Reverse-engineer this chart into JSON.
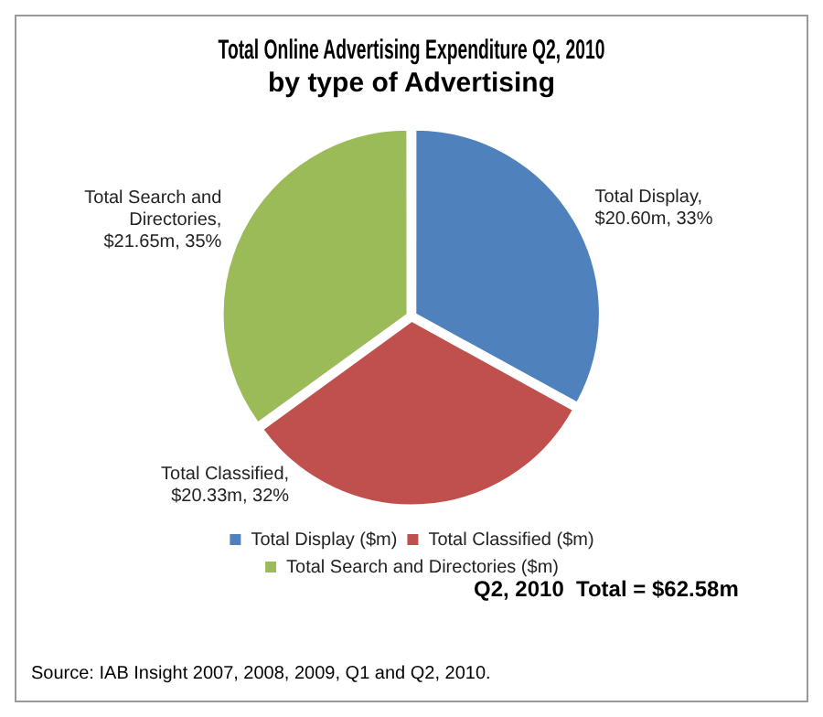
{
  "chart_data": {
    "type": "pie",
    "title": "Total Online Advertising Expenditure Q2, 2010\nby type of Advertising",
    "categories": [
      "Total Display ($m)",
      "Total Classified ($m)",
      "Total Search and Directories ($m)"
    ],
    "values": [
      33,
      32,
      35
    ],
    "colors": [
      "#4f81bd",
      "#c0504d",
      "#9bbb59"
    ],
    "value_labels": [
      "Total Display, $20.60m, 33%",
      "Total Classified, $20.33m, 32%",
      "Total Search and Directories, $21.65m, 35%"
    ],
    "legend": "bottom",
    "annotations": [
      "Q2, 2010  Total = $62.58m",
      "Source: IAB Insight 2007, 2008, 2009, Q1 and Q2, 2010."
    ]
  }
}
